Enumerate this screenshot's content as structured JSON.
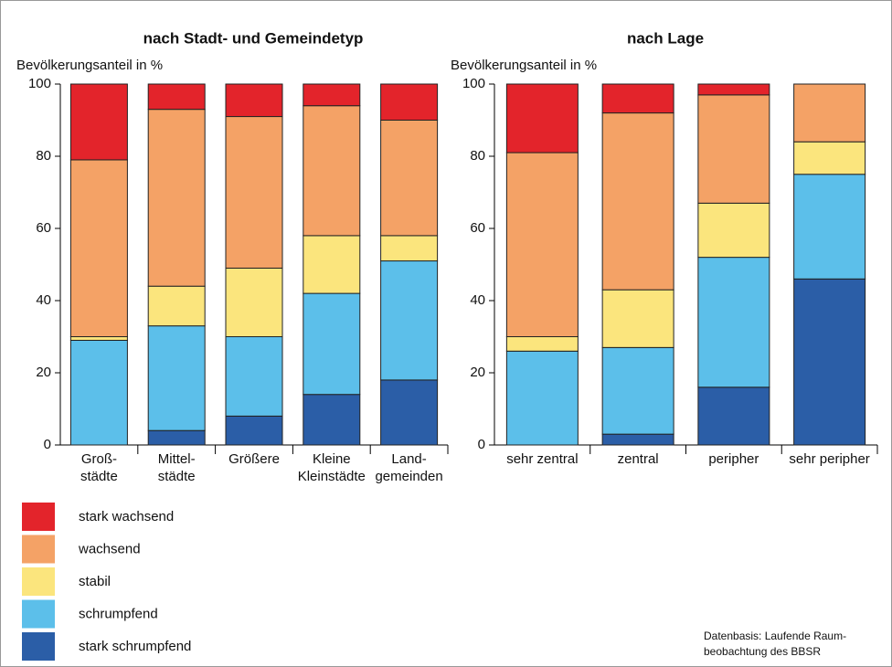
{
  "legend": [
    {
      "name": "stark wachsend",
      "color": "#e3242b"
    },
    {
      "name": "wachsend",
      "color": "#f4a266"
    },
    {
      "name": "stabil",
      "color": "#fbe57d"
    },
    {
      "name": "schrumpfend",
      "color": "#5cbfea"
    },
    {
      "name": "stark schrumpfend",
      "color": "#2b5ea7"
    }
  ],
  "source": [
    "Datenbasis: Laufende Raum-",
    "beobachtung des BBSR"
  ],
  "chart_data": [
    {
      "type": "bar",
      "stacked": true,
      "title": "nach Stadt- und Gemeindetyp",
      "y_label": "Bevölkerungsanteil in %",
      "categories": [
        [
          "Groß-",
          "städte"
        ],
        [
          "Mittel-",
          "städte"
        ],
        [
          "Größere"
        ],
        [
          "Kleine",
          "Kleinstädte"
        ],
        [
          "Land-",
          "gemeinden"
        ]
      ],
      "series": [
        {
          "values": [
            0,
            4,
            8,
            14,
            18
          ]
        },
        {
          "values": [
            29,
            29,
            22,
            28,
            33
          ]
        },
        {
          "values": [
            1,
            11,
            19,
            16,
            7
          ]
        },
        {
          "values": [
            49,
            49,
            42,
            36,
            32
          ]
        },
        {
          "values": [
            21,
            7,
            9,
            6,
            10
          ]
        }
      ],
      "ylim": [
        0,
        100
      ],
      "yticks": [
        0,
        20,
        40,
        60,
        80,
        100
      ]
    },
    {
      "type": "bar",
      "stacked": true,
      "title": "nach Lage",
      "y_label": "Bevölkerungsanteil in %",
      "categories": [
        [
          "sehr zentral"
        ],
        [
          "zentral"
        ],
        [
          "peripher"
        ],
        [
          "sehr peripher"
        ]
      ],
      "series": [
        {
          "values": [
            0,
            3,
            16,
            46
          ]
        },
        {
          "values": [
            26,
            24,
            36,
            29
          ]
        },
        {
          "values": [
            4,
            16,
            15,
            9
          ]
        },
        {
          "values": [
            51,
            49,
            30,
            16
          ]
        },
        {
          "values": [
            19,
            8,
            3,
            0
          ]
        }
      ],
      "ylim": [
        0,
        100
      ],
      "yticks": [
        0,
        20,
        40,
        60,
        80,
        100
      ]
    }
  ]
}
